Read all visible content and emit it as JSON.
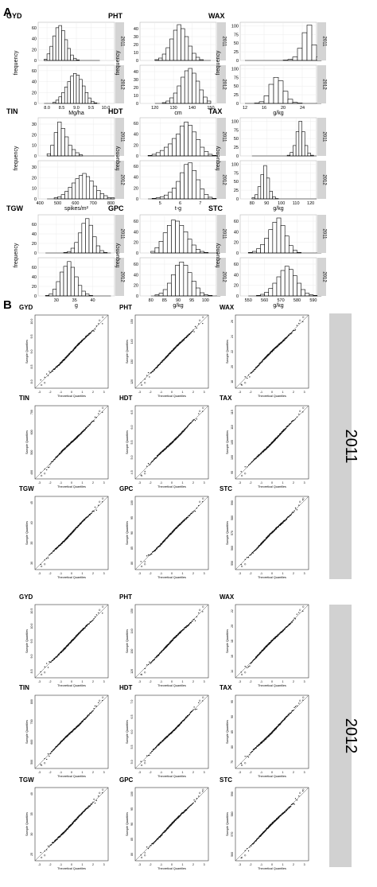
{
  "panels": {
    "a": "A",
    "b": "B"
  },
  "hist_axis": {
    "frequency": "frequency",
    "years": [
      "2011",
      "2012"
    ]
  },
  "qq_axis": {
    "x": "Theoretical Quantiles",
    "y": "Sample Quantiles"
  },
  "chart_data": [
    {
      "type": "bar",
      "panel": "A",
      "description": "Frequency histograms for 2011 (top) and 2012 (bottom) per trait",
      "traits": [
        {
          "name": "GYD",
          "unit": "Mg/ha",
          "xticks": [
            "8.0",
            "8.5",
            "9.0",
            "9.5",
            "10.0"
          ],
          "xlim": [
            7.7,
            10.3
          ],
          "ytick_2011": [
            0,
            20,
            40,
            60
          ],
          "ytick_2012": [
            0,
            20,
            40,
            60
          ],
          "ylim": [
            0,
            70
          ],
          "bin_start": 7.9,
          "bin_width": 0.1,
          "2011": [
            2,
            12,
            26,
            45,
            60,
            64,
            55,
            38,
            22,
            10,
            4,
            1,
            0,
            0,
            0,
            0,
            0,
            0,
            0
          ],
          "2012": [
            0,
            0,
            0,
            2,
            6,
            12,
            20,
            30,
            40,
            50,
            55,
            52,
            44,
            32,
            20,
            10,
            4,
            1,
            0
          ]
        },
        {
          "name": "PHT",
          "unit": "cm",
          "xticks": [
            "120",
            "130",
            "140",
            "150"
          ],
          "xlim": [
            112,
            153
          ],
          "ytick_2011": [
            0,
            10,
            20,
            30,
            40
          ],
          "ytick_2012": [
            0,
            10,
            20,
            30,
            40
          ],
          "ylim": [
            0,
            48
          ],
          "bin_start": 120,
          "bin_width": 2,
          "2011": [
            1,
            3,
            8,
            16,
            27,
            38,
            45,
            40,
            30,
            18,
            9,
            4,
            1,
            0,
            0
          ],
          "2012": [
            0,
            0,
            1,
            3,
            7,
            13,
            22,
            33,
            41,
            44,
            38,
            28,
            17,
            8,
            3
          ]
        },
        {
          "name": "WAX",
          "unit": "g/kg",
          "xticks": [
            "12",
            "16",
            "20",
            "24"
          ],
          "xlim": [
            11,
            27
          ],
          "ytick_2011": [
            0,
            25,
            50,
            75,
            100
          ],
          "ytick_2012": [
            0,
            25,
            50,
            75,
            100
          ],
          "ylim": [
            0,
            110
          ],
          "bin_start": 12,
          "bin_width": 1,
          "2011": [
            0,
            0,
            0,
            0,
            0,
            0,
            0,
            0,
            1,
            3,
            10,
            35,
            80,
            102,
            45,
            10
          ],
          "2012": [
            0,
            0,
            1,
            5,
            22,
            55,
            75,
            65,
            35,
            12,
            3,
            1,
            0,
            0,
            0,
            0
          ]
        },
        {
          "name": "TIN",
          "unit": "spikes/m²",
          "xticks": [
            "400",
            "500",
            "600",
            "700",
            "800"
          ],
          "xlim": [
            390,
            820
          ],
          "ytick_2011": [
            0,
            10,
            20,
            30
          ],
          "ytick_2012": [
            0,
            10,
            20,
            30
          ],
          "ylim": [
            0,
            36
          ],
          "bin_start": 440,
          "bin_width": 20,
          "2011": [
            2,
            10,
            22,
            32,
            26,
            18,
            10,
            6,
            3,
            1,
            0,
            0,
            0,
            0,
            0,
            0,
            0,
            0,
            0
          ],
          "2012": [
            0,
            0,
            1,
            2,
            4,
            7,
            11,
            15,
            19,
            22,
            24,
            21,
            17,
            12,
            8,
            5,
            3,
            1,
            1
          ]
        },
        {
          "name": "HDT",
          "unit": "t-g",
          "xticks": [
            "5",
            "6",
            "7"
          ],
          "xlim": [
            4.0,
            7.8
          ],
          "ytick_2011": [
            0,
            20,
            40,
            60
          ],
          "ytick_2012": [
            0,
            20,
            40,
            60
          ],
          "ylim": [
            0,
            70
          ],
          "bin_start": 4.4,
          "bin_width": 0.2,
          "2011": [
            1,
            3,
            6,
            10,
            16,
            22,
            32,
            40,
            55,
            62,
            56,
            44,
            30,
            16,
            8,
            3,
            1
          ],
          "2012": [
            0,
            1,
            2,
            4,
            7,
            12,
            20,
            32,
            48,
            63,
            66,
            52,
            35,
            18,
            8,
            3,
            1
          ]
        },
        {
          "name": "TAX",
          "unit": "g/kg",
          "xticks": [
            "80",
            "90",
            "100",
            "110",
            "120"
          ],
          "xlim": [
            72,
            124
          ],
          "ytick_2011": [
            0,
            25,
            50,
            75,
            100
          ],
          "ytick_2012": [
            0,
            25,
            50,
            75,
            100
          ],
          "ylim": [
            0,
            110
          ],
          "bin_start": 80,
          "bin_width": 2,
          "2011": [
            0,
            0,
            0,
            0,
            0,
            0,
            0,
            0,
            0,
            0,
            0,
            0,
            2,
            10,
            30,
            70,
            100,
            70,
            30,
            8,
            2,
            0
          ],
          "2012": [
            3,
            12,
            35,
            70,
            96,
            60,
            22,
            6,
            1,
            0,
            0,
            0,
            0,
            0,
            0,
            0,
            0,
            0,
            0,
            0,
            0,
            0
          ]
        },
        {
          "name": "TGW",
          "unit": "g",
          "xticks": [
            "30",
            "35",
            "40"
          ],
          "xlim": [
            25,
            46
          ],
          "ytick_2011": [
            0,
            20,
            40,
            60
          ],
          "ytick_2012": [
            0,
            20,
            40,
            60
          ],
          "ylim": [
            0,
            80
          ],
          "bin_start": 27,
          "bin_width": 1,
          "2011": [
            0,
            0,
            0,
            0,
            0,
            1,
            3,
            10,
            22,
            42,
            62,
            72,
            58,
            34,
            15,
            5,
            1,
            0
          ],
          "2012": [
            1,
            4,
            14,
            30,
            50,
            62,
            72,
            60,
            40,
            22,
            10,
            4,
            1,
            0,
            0,
            0,
            0,
            0
          ]
        },
        {
          "name": "GPC",
          "unit": "g/kg",
          "xticks": [
            "80",
            "85",
            "90",
            "95",
            "100"
          ],
          "xlim": [
            76,
            104
          ],
          "ytick_2011": [
            0,
            20,
            40,
            60
          ],
          "ytick_2012": [
            0,
            20,
            40,
            60
          ],
          "ylim": [
            0,
            72
          ],
          "bin_start": 80,
          "bin_width": 1.5,
          "2011": [
            3,
            10,
            22,
            38,
            52,
            62,
            60,
            52,
            40,
            26,
            15,
            7,
            3,
            1,
            0,
            0,
            0
          ],
          "2012": [
            0,
            2,
            5,
            12,
            24,
            40,
            58,
            64,
            58,
            44,
            28,
            15,
            6,
            2,
            1,
            0,
            0
          ]
        },
        {
          "name": "STC",
          "unit": "g/kg",
          "xticks": [
            "550",
            "560",
            "570",
            "580",
            "590"
          ],
          "xlim": [
            545,
            592
          ],
          "ytick_2011": [
            0,
            20,
            40,
            60
          ],
          "ytick_2012": [
            0,
            20,
            40,
            60
          ],
          "ylim": [
            0,
            72
          ],
          "bin_start": 550,
          "bin_width": 2.5,
          "2011": [
            1,
            3,
            8,
            16,
            28,
            44,
            58,
            66,
            52,
            32,
            14,
            5,
            1,
            0,
            0,
            0,
            0,
            0
          ],
          "2012": [
            0,
            0,
            1,
            3,
            7,
            14,
            24,
            36,
            48,
            56,
            50,
            38,
            24,
            12,
            5,
            2,
            1,
            0
          ]
        }
      ]
    },
    {
      "type": "scatter",
      "panel": "B",
      "description": "Normal Q-Q plots (sample vs theoretical quantiles) per trait and year",
      "x_ticks": [
        "-3",
        "-2",
        "-1",
        "0",
        "1",
        "2",
        "3"
      ],
      "years": [
        {
          "year": "2011",
          "traits": [
            {
              "name": "GYD",
              "yticks": [
                "8.0",
                "8.5",
                "9.0",
                "9.5",
                "10.0"
              ]
            },
            {
              "name": "PHT",
              "yticks": [
                "120",
                "130",
                "140",
                "150"
              ]
            },
            {
              "name": "WAX",
              "yticks": [
                "18",
                "20",
                "22",
                "24",
                "26"
              ]
            },
            {
              "name": "TIN",
              "yticks": [
                "400",
                "500",
                "600",
                "700"
              ]
            },
            {
              "name": "HDT",
              "yticks": [
                "4.5",
                "5.0",
                "5.5",
                "6.0",
                "6.5"
              ]
            },
            {
              "name": "TAX",
              "yticks": [
                "95",
                "100",
                "105",
                "110",
                "115"
              ]
            },
            {
              "name": "TGW",
              "yticks": [
                "30",
                "35",
                "40",
                "45"
              ]
            },
            {
              "name": "GPC",
              "yticks": [
                "80",
                "85",
                "90",
                "95",
                "100"
              ]
            },
            {
              "name": "STC",
              "yticks": [
                "550",
                "560",
                "570",
                "580",
                "590"
              ]
            }
          ]
        },
        {
          "year": "2012",
          "traits": [
            {
              "name": "GYD",
              "yticks": [
                "8.5",
                "9.0",
                "9.5",
                "10.0",
                "10.5"
              ]
            },
            {
              "name": "PHT",
              "yticks": [
                "120",
                "130",
                "140",
                "150"
              ]
            },
            {
              "name": "WAX",
              "yticks": [
                "14",
                "16",
                "18",
                "20",
                "22"
              ]
            },
            {
              "name": "TIN",
              "yticks": [
                "500",
                "600",
                "700",
                "800"
              ]
            },
            {
              "name": "HDT",
              "yticks": [
                "5.0",
                "5.5",
                "6.0",
                "6.5",
                "7.0"
              ]
            },
            {
              "name": "TAX",
              "yticks": [
                "75",
                "80",
                "85",
                "90",
                "95"
              ]
            },
            {
              "name": "TGW",
              "yticks": [
                "25",
                "30",
                "35",
                "40"
              ]
            },
            {
              "name": "GPC",
              "yticks": [
                "80",
                "85",
                "90",
                "95",
                "100"
              ]
            },
            {
              "name": "STC",
              "yticks": [
                "560",
                "570",
                "580",
                "590"
              ]
            }
          ]
        }
      ]
    }
  ]
}
